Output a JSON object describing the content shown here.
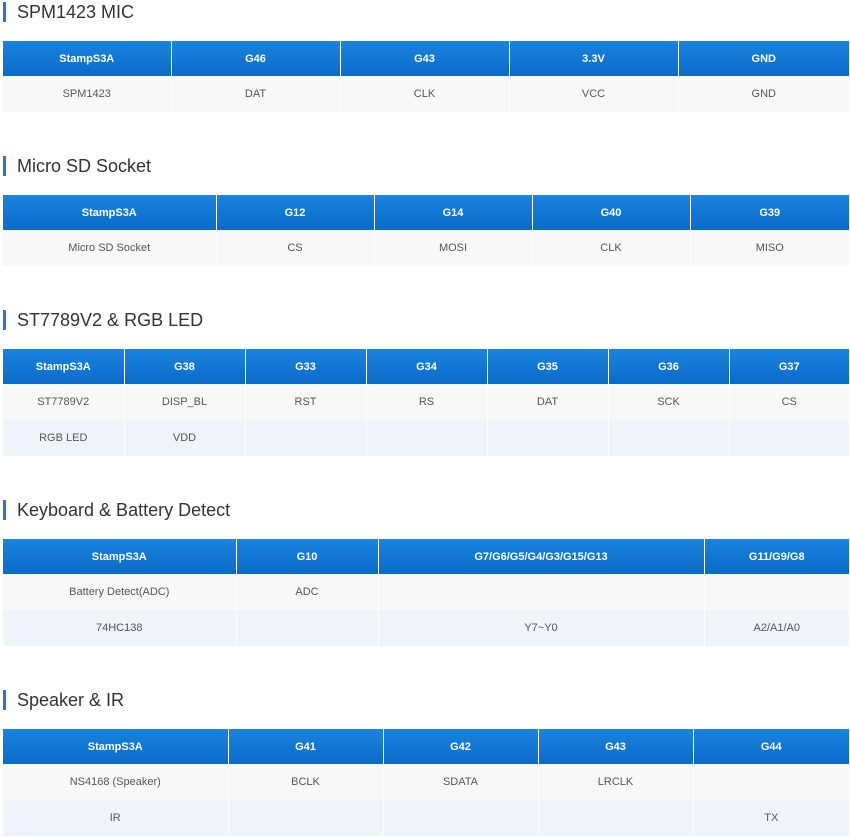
{
  "sections": [
    {
      "title": "SPM1423 MIC",
      "headers": [
        "StampS3A",
        "G46",
        "G43",
        "3.3V",
        "GND"
      ],
      "rows": [
        [
          "SPM1423",
          "DAT",
          "CLK",
          "VCC",
          "GND"
        ]
      ]
    },
    {
      "title": "Micro SD Socket",
      "headers": [
        "StampS3A",
        "G12",
        "G14",
        "G40",
        "G39"
      ],
      "rows": [
        [
          "Micro SD Socket",
          "CS",
          "MOSI",
          "CLK",
          "MISO"
        ]
      ]
    },
    {
      "title": "ST7789V2 & RGB LED",
      "headers": [
        "StampS3A",
        "G38",
        "G33",
        "G34",
        "G35",
        "G36",
        "G37"
      ],
      "rows": [
        [
          "ST7789V2",
          "DISP_BL",
          "RST",
          "RS",
          "DAT",
          "SCK",
          "CS"
        ],
        [
          "RGB LED",
          "VDD",
          "",
          "",
          "",
          "",
          ""
        ]
      ]
    },
    {
      "title": "Keyboard & Battery Detect",
      "headers": [
        "StampS3A",
        "G10",
        "G7/G6/G5/G4/G3/G15/G13",
        "G11/G9/G8"
      ],
      "rows": [
        [
          "Battery Detect(ADC)",
          "ADC",
          "",
          ""
        ],
        [
          "74HC138",
          "",
          "Y7~Y0",
          "A2/A1/A0"
        ]
      ]
    },
    {
      "title": "Speaker & IR",
      "headers": [
        "StampS3A",
        "G41",
        "G42",
        "G43",
        "G44"
      ],
      "rows": [
        [
          "NS4168 (Speaker)",
          "BCLK",
          "SDATA",
          "LRCLK",
          ""
        ],
        [
          "IR",
          "",
          "",
          "",
          "TX"
        ]
      ]
    }
  ]
}
